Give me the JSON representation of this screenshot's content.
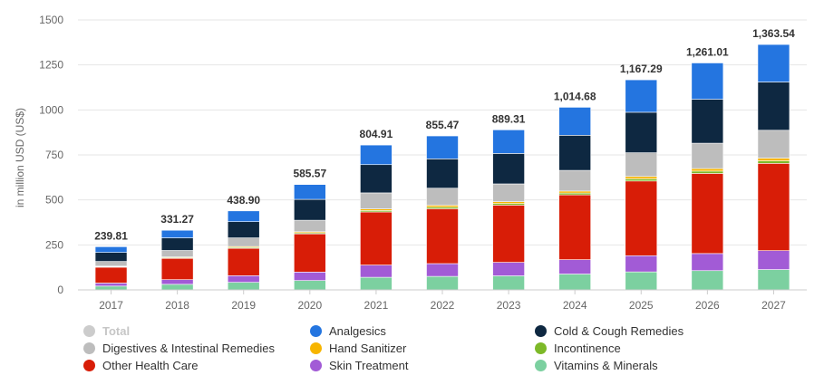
{
  "chart_data": {
    "type": "bar",
    "stacked": true,
    "ylabel": "in million USD (US$)",
    "ylim": [
      0,
      1500
    ],
    "yticks": [
      0,
      250,
      500,
      750,
      1000,
      1250,
      1500
    ],
    "ytick_labels": [
      "0",
      "250",
      "500",
      "750",
      "1000",
      "1250",
      "1500"
    ],
    "grid": true,
    "legend_position": "bottom",
    "categories": [
      "2017",
      "2018",
      "2019",
      "2020",
      "2021",
      "2022",
      "2023",
      "2024",
      "2025",
      "2026",
      "2027"
    ],
    "totals": [
      239.81,
      331.27,
      438.9,
      585.57,
      804.91,
      855.47,
      889.31,
      1014.68,
      1167.29,
      1261.01,
      1363.54
    ],
    "total_labels": [
      "239.81",
      "331.27",
      "438.90",
      "585.57",
      "804.91",
      "855.47",
      "889.31",
      "1,014.68",
      "1,167.29",
      "1,261.01",
      "1,363.54"
    ],
    "series": [
      {
        "name": "Vitamins & Minerals",
        "color": "#7cd0a0",
        "values": [
          21,
          31,
          42,
          52,
          70,
          75,
          78,
          88,
          100,
          107,
          113
        ]
      },
      {
        "name": "Skin Treatment",
        "color": "#a25bd6",
        "values": [
          17,
          26,
          37,
          47,
          68,
          71,
          75,
          80,
          90,
          95,
          105
        ]
      },
      {
        "name": "Other Health Care",
        "color": "#d81d07",
        "values": [
          88,
          118,
          152,
          212,
          295,
          305,
          318,
          360,
          415,
          445,
          485
        ]
      },
      {
        "name": "Incontinence",
        "color": "#7db928",
        "values": [
          3,
          4,
          5,
          6,
          8,
          9,
          9,
          10,
          12,
          13,
          14
        ]
      },
      {
        "name": "Hand Sanitizer",
        "color": "#f7b500",
        "values": [
          3,
          4,
          5,
          6,
          9,
          10,
          10,
          11,
          13,
          14,
          15
        ]
      },
      {
        "name": "Digestives & Intestinal Remedies",
        "color": "#bdbdbd",
        "values": [
          26,
          36,
          48,
          64,
          89,
          95,
          99,
          115,
          132,
          141,
          155
        ]
      },
      {
        "name": "Cold & Cough Remedies",
        "color": "#0e2841",
        "values": [
          50,
          70,
          90,
          116,
          157,
          163,
          169,
          195,
          225,
          244,
          268
        ]
      },
      {
        "name": "Analgesics",
        "color": "#2475e0",
        "values": [
          31.81,
          42.27,
          59.9,
          82.57,
          108.91,
          127.47,
          131.31,
          155.68,
          180.29,
          202.01,
          208.54
        ]
      }
    ]
  },
  "legend": [
    {
      "label": "Total",
      "color": "#cccccc",
      "disabled": true
    },
    {
      "label": "Analgesics",
      "color": "#2475e0"
    },
    {
      "label": "Cold & Cough Remedies",
      "color": "#0e2841"
    },
    {
      "label": "Digestives & Intestinal Remedies",
      "color": "#bdbdbd"
    },
    {
      "label": "Hand Sanitizer",
      "color": "#f7b500"
    },
    {
      "label": "Incontinence",
      "color": "#7db928"
    },
    {
      "label": "Other Health Care",
      "color": "#d81d07"
    },
    {
      "label": "Skin Treatment",
      "color": "#a25bd6"
    },
    {
      "label": "Vitamins & Minerals",
      "color": "#7cd0a0"
    }
  ]
}
